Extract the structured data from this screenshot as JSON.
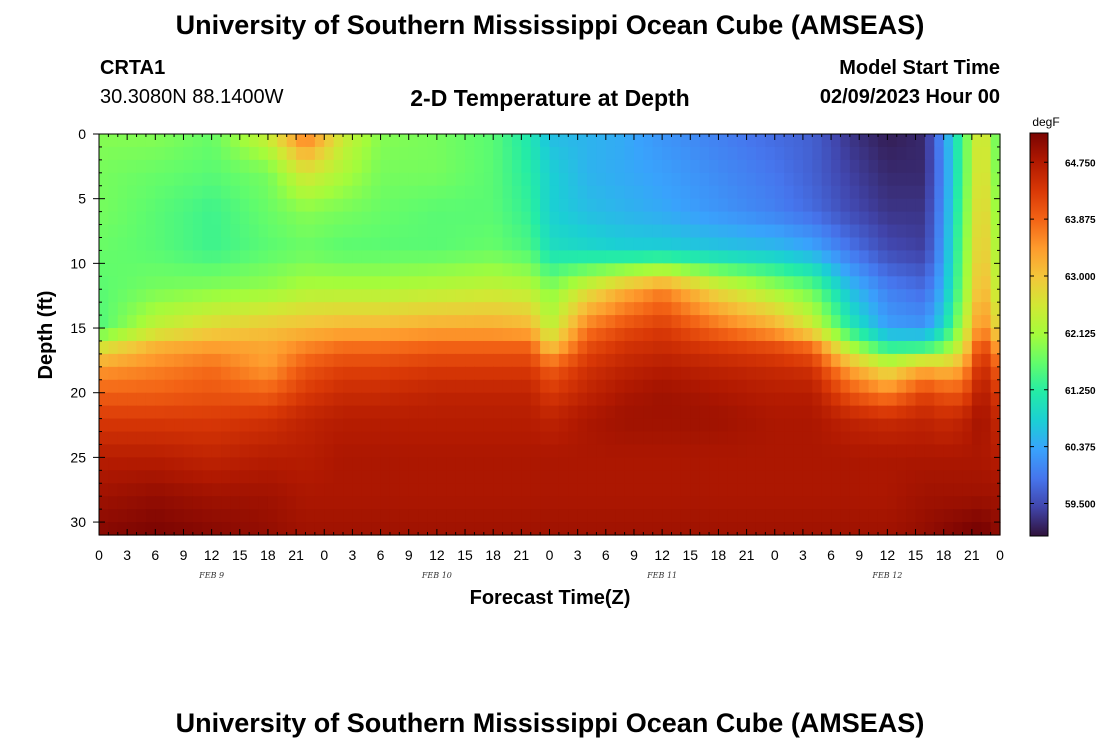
{
  "header": {
    "title": "University of Southern Mississippi Ocean Cube (AMSEAS)",
    "station": "CRTA1",
    "coords": "30.3080N  88.1400W",
    "plot_title": "2-D Temperature at Depth",
    "model_start_label": "Model Start Time",
    "model_start_value": "02/09/2023 Hour 00"
  },
  "footer": {
    "title": "University of Southern Mississippi Ocean Cube (AMSEAS)"
  },
  "colors": {
    "colormap": [
      "#30123b",
      "#4145ab",
      "#4675ed",
      "#39a2fc",
      "#1bcfd4",
      "#24eca6",
      "#61fc6c",
      "#a4fc3b",
      "#d1e834",
      "#f3c63a",
      "#fe9b2d",
      "#f36315",
      "#d93806",
      "#b11901",
      "#7a0402"
    ]
  },
  "chart_data": {
    "type": "heatmap",
    "title": "2-D Temperature at Depth",
    "xlabel": "Forecast Time(Z)",
    "ylabel": "Depth (ft)",
    "x_ticks": [
      "0",
      "3",
      "6",
      "9",
      "12",
      "15",
      "18",
      "21",
      "0",
      "3",
      "6",
      "9",
      "12",
      "15",
      "18",
      "21",
      "0",
      "3",
      "6",
      "9",
      "12",
      "15",
      "18",
      "21",
      "0",
      "3",
      "6",
      "9",
      "12",
      "15",
      "18",
      "21",
      "0"
    ],
    "x_hours_range": [
      0,
      96
    ],
    "day_labels": [
      {
        "label": "FEB 9",
        "hour": 12
      },
      {
        "label": "FEB 10",
        "hour": 36
      },
      {
        "label": "FEB 11",
        "hour": 60
      },
      {
        "label": "FEB 12",
        "hour": 84
      }
    ],
    "y_ticks": [
      "0",
      "5",
      "10",
      "15",
      "20",
      "25",
      "30"
    ],
    "y_tick_values": [
      0,
      5,
      10,
      15,
      20,
      25,
      30
    ],
    "ylim": [
      0,
      31
    ],
    "colorbar": {
      "unit": "degF",
      "range": [
        59.0,
        65.2
      ],
      "tick_labels": [
        "64.750",
        "63.875",
        "63.000",
        "62.125",
        "61.250",
        "60.375",
        "59.500"
      ],
      "tick_values": [
        64.75,
        63.875,
        63.0,
        62.125,
        61.25,
        60.375,
        59.5
      ]
    },
    "temperature_grid": {
      "hours": [
        0,
        6,
        12,
        18,
        22,
        26,
        30,
        36,
        42,
        46,
        48,
        52,
        56,
        60,
        66,
        72,
        76,
        80,
        84,
        88,
        90,
        92,
        94,
        96
      ],
      "depths": [
        0,
        3,
        6,
        9,
        12,
        15,
        16.5,
        18,
        20,
        22,
        25,
        28,
        31
      ],
      "values": [
        [
          61.9,
          61.9,
          61.7,
          62.5,
          63.8,
          62.5,
          61.9,
          61.8,
          61.6,
          61.1,
          60.6,
          60.5,
          60.4,
          60.2,
          60.0,
          59.8,
          59.7,
          59.3,
          59.1,
          59.2,
          60.2,
          61.5,
          62.8,
          61.5
        ],
        [
          61.8,
          61.7,
          61.6,
          61.8,
          62.6,
          62.2,
          61.8,
          61.8,
          61.6,
          61.2,
          60.8,
          60.5,
          60.4,
          60.3,
          60.1,
          59.9,
          59.7,
          59.4,
          59.2,
          59.2,
          60.1,
          61.5,
          62.9,
          61.6
        ],
        [
          61.8,
          61.6,
          61.4,
          61.7,
          61.9,
          61.8,
          61.7,
          61.6,
          61.6,
          61.3,
          60.8,
          60.6,
          60.5,
          60.4,
          60.2,
          60.0,
          59.8,
          59.5,
          59.3,
          59.3,
          60.2,
          61.6,
          63.0,
          61.8
        ],
        [
          61.7,
          61.6,
          61.4,
          61.6,
          61.7,
          61.6,
          61.6,
          61.6,
          61.7,
          61.5,
          61.0,
          60.9,
          60.8,
          60.8,
          60.7,
          60.6,
          60.4,
          59.9,
          59.5,
          59.4,
          60.3,
          61.7,
          63.1,
          62.0
        ],
        [
          61.6,
          61.8,
          61.9,
          62.0,
          62.2,
          62.2,
          62.2,
          62.3,
          62.4,
          62.3,
          61.9,
          62.6,
          63.2,
          63.6,
          62.7,
          62.1,
          61.7,
          60.6,
          60.0,
          59.8,
          60.5,
          61.8,
          63.3,
          62.2
        ],
        [
          61.5,
          62.4,
          62.8,
          63.0,
          63.1,
          63.2,
          63.2,
          63.3,
          63.3,
          63.2,
          62.3,
          63.7,
          64.1,
          64.3,
          63.8,
          63.3,
          62.6,
          61.2,
          60.3,
          60.2,
          60.9,
          62.2,
          63.7,
          62.6
        ],
        [
          62.6,
          63.2,
          63.4,
          63.3,
          63.6,
          63.8,
          63.8,
          63.9,
          63.9,
          63.9,
          63.0,
          64.1,
          64.4,
          64.5,
          64.3,
          64.1,
          63.8,
          62.2,
          61.3,
          61.4,
          61.8,
          62.6,
          64.3,
          63.2
        ],
        [
          63.4,
          63.6,
          63.8,
          63.4,
          64.0,
          64.2,
          64.2,
          64.3,
          64.3,
          64.3,
          63.9,
          64.4,
          64.6,
          64.7,
          64.6,
          64.5,
          64.4,
          63.3,
          62.6,
          63.2,
          63.0,
          63.3,
          64.6,
          63.8
        ],
        [
          63.9,
          63.9,
          64.0,
          63.9,
          64.3,
          64.5,
          64.5,
          64.6,
          64.6,
          64.6,
          64.3,
          64.6,
          64.8,
          64.9,
          64.8,
          64.7,
          64.7,
          64.0,
          63.6,
          64.2,
          64.0,
          64.0,
          64.8,
          64.2
        ],
        [
          64.3,
          64.3,
          64.3,
          64.4,
          64.6,
          64.7,
          64.7,
          64.7,
          64.7,
          64.7,
          64.6,
          64.8,
          64.9,
          64.9,
          64.9,
          64.8,
          64.8,
          64.6,
          64.5,
          64.6,
          64.5,
          64.6,
          64.9,
          64.5
        ],
        [
          64.7,
          64.7,
          64.6,
          64.7,
          64.7,
          64.8,
          64.8,
          64.8,
          64.8,
          64.8,
          64.8,
          64.8,
          64.8,
          64.8,
          64.8,
          64.8,
          64.8,
          64.8,
          64.8,
          64.8,
          64.8,
          64.8,
          64.8,
          64.7
        ],
        [
          64.9,
          65.0,
          64.9,
          64.9,
          64.8,
          64.8,
          64.8,
          64.8,
          64.8,
          64.8,
          64.8,
          64.8,
          64.8,
          64.8,
          64.8,
          64.8,
          64.8,
          64.8,
          64.8,
          64.9,
          64.9,
          64.9,
          64.9,
          64.9
        ],
        [
          65.1,
          65.2,
          65.1,
          65.0,
          64.9,
          64.9,
          64.9,
          64.9,
          64.9,
          64.9,
          64.9,
          64.9,
          64.9,
          64.9,
          64.9,
          64.9,
          64.9,
          64.9,
          64.9,
          65.0,
          65.1,
          65.2,
          65.3,
          65.0
        ]
      ]
    }
  }
}
